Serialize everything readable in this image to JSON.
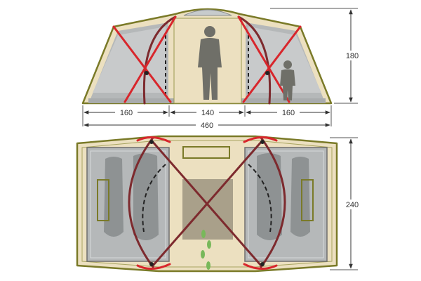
{
  "dimensions": {
    "side_left_width": "160",
    "center_width": "140",
    "side_right_width": "160",
    "total_width": "460",
    "height": "180",
    "depth": "240"
  },
  "colors": {
    "pole_red": "#d8262c",
    "pole_dark": "#7d2a2e",
    "frame_olive": "#7a7a28",
    "fabric_tan": "#ece0c0",
    "inner_grey": "#b5b8b9",
    "sleeping_bag": "#8e9293",
    "silhouette": "#6f6f68",
    "footprint_green": "#78b85a"
  },
  "icons": [
    "person-silhouette-adult",
    "person-silhouette-child",
    "sleeping-bag",
    "footprint",
    "pole-clip"
  ]
}
